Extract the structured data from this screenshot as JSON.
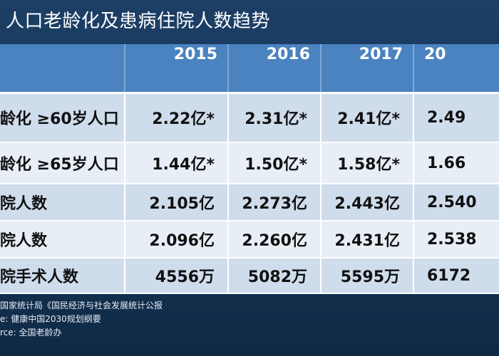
{
  "title": "人口老龄化及患病住院人数趋势",
  "table": {
    "headers": [
      "",
      "2015",
      "2016",
      "2017",
      "20"
    ],
    "rows": [
      {
        "label": "龄化  ≥60岁人口",
        "values": [
          "2.22亿*",
          "2.31亿*",
          "2.41亿*",
          "2.49"
        ]
      },
      {
        "label": "龄化  ≥65岁人口",
        "values": [
          "1.44亿*",
          "1.50亿*",
          "1.58亿*",
          "1.66"
        ]
      },
      {
        "label": "院人数",
        "values": [
          "2.105亿",
          "2.273亿",
          "2.443亿",
          "2.540"
        ]
      },
      {
        "label": "院人数",
        "values": [
          "2.096亿",
          "2.260亿",
          "2.431亿",
          "2.538"
        ]
      },
      {
        "label": "院手术人数",
        "values": [
          "4556万",
          "5082万",
          "5595万",
          "6172"
        ]
      }
    ]
  },
  "sources": [
    "国家统计局《国民经济与社会发展统计公报",
    "e:   健康中国2030规划纲要",
    "rce:   全国老龄办"
  ]
}
